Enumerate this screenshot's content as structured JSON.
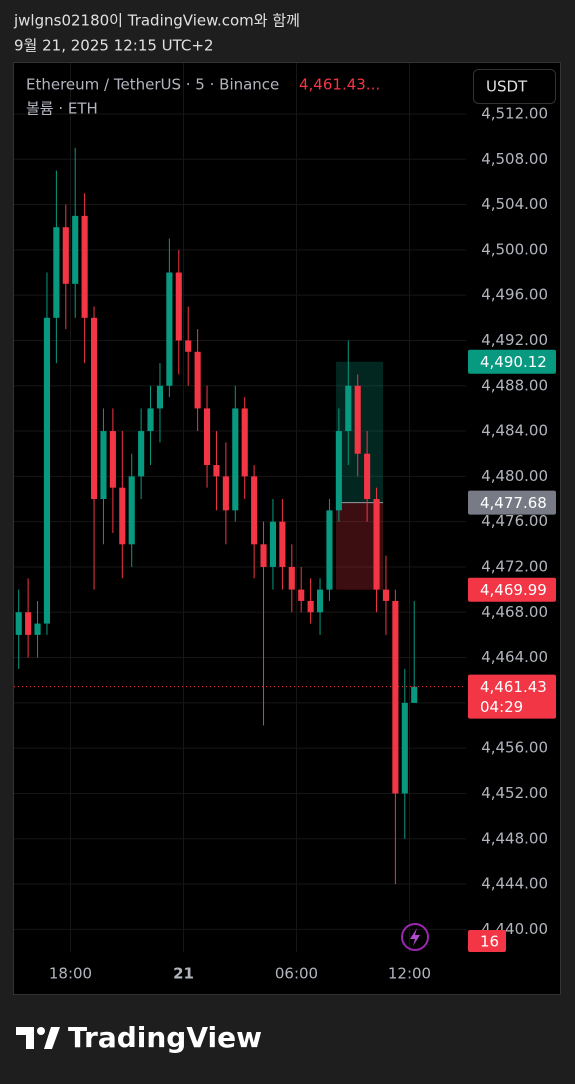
{
  "header": {
    "user": "jwlgns02180이 TradingView.com와 함께",
    "date": "9월 21, 2025 12:15 UTC+2"
  },
  "footer": {
    "logo": "TradingView"
  },
  "chart_data": {
    "type": "candlestick",
    "symbol": "Ethereum / TetherUS · 5 · Binance",
    "legend_price": {
      "value": 4461.43,
      "label": "4,461.43..."
    },
    "volume_legend": "볼륨 · ETH",
    "currency": "USDT",
    "up_color": "#089981",
    "down_color": "#f23645",
    "x": [
      15.25,
      15.75,
      16.25,
      16.75,
      17.25,
      17.75,
      18.25,
      18.75,
      19.25,
      19.75,
      20.25,
      20.75,
      21.25,
      21.75,
      22.25,
      22.75,
      23.25,
      23.75,
      24.25,
      24.75,
      25.25,
      25.75,
      26.25,
      26.75,
      27.25,
      27.75,
      28.25,
      28.75,
      29.25,
      29.75,
      30.25,
      30.75,
      31.25,
      31.75,
      32.25,
      32.75,
      33.25,
      33.75,
      34.25,
      34.75,
      35.25,
      35.75,
      36.25
    ],
    "open": [
      4466,
      4468,
      4466,
      4467,
      4494,
      4502,
      4497,
      4503,
      4494,
      4478,
      4484,
      4479,
      4474,
      4480,
      4484,
      4486,
      4488,
      4498,
      4492,
      4491,
      4486,
      4481,
      4480,
      4477,
      4486,
      4480,
      4474,
      4472,
      4476,
      4472,
      4470,
      4469,
      4468,
      4470,
      4477,
      4484,
      4488,
      4482,
      4478,
      4470,
      4469,
      4452,
      4460
    ],
    "high": [
      4470,
      4471,
      4469,
      4498,
      4507,
      4504,
      4509,
      4505,
      4495,
      4486,
      4486,
      4484,
      4482,
      4486,
      4488,
      4490,
      4501,
      4500,
      4495,
      4493,
      4488,
      4484,
      4483,
      4488,
      4487,
      4481,
      4476,
      4478,
      4478,
      4474,
      4472,
      4471,
      4471,
      4478,
      4486,
      4492,
      4489,
      4484,
      4479,
      4473,
      4470,
      4463,
      4469
    ],
    "low": [
      4463,
      4464,
      4464,
      4466,
      4490,
      4493,
      4494,
      4490,
      4470,
      4474,
      4475,
      4471,
      4472,
      4478,
      4481,
      4483,
      4487,
      4489,
      4488,
      4484,
      4479,
      4477,
      4474,
      4476,
      4478,
      4471,
      4458,
      4470,
      4470,
      4468,
      4468,
      4467,
      4466,
      4469,
      4476,
      4481,
      4480,
      4476,
      4468,
      4466,
      4444,
      4448,
      4460
    ],
    "close": [
      4468,
      4466,
      4467,
      4494,
      4502,
      4497,
      4503,
      4494,
      4478,
      4484,
      4479,
      4474,
      4480,
      4484,
      4486,
      4488,
      4498,
      4492,
      4491,
      4486,
      4481,
      4480,
      4477,
      4486,
      4480,
      4474,
      4472,
      4476,
      4472,
      4470,
      4469,
      4468,
      4470,
      4477,
      4484,
      4488,
      4482,
      4478,
      4470,
      4469,
      4452,
      4460,
      4461.43
    ],
    "xlim": [
      15,
      39
    ],
    "xticks": [
      {
        "value": 18,
        "label": "18:00"
      },
      {
        "value": 24,
        "label": "21"
      },
      {
        "value": 30,
        "label": "06:00"
      },
      {
        "value": 36,
        "label": "12:00"
      }
    ],
    "ylim": [
      4438,
      4516.5
    ],
    "yticks": [
      {
        "value": 4440,
        "label": "4,440.00"
      },
      {
        "value": 4444,
        "label": "4,444.00"
      },
      {
        "value": 4448,
        "label": "4,448.00"
      },
      {
        "value": 4452,
        "label": "4,452.00"
      },
      {
        "value": 4456,
        "label": "4,456.00"
      },
      {
        "value": 4460,
        "label": "4,460.00"
      },
      {
        "value": 4464,
        "label": "4,464.00"
      },
      {
        "value": 4468,
        "label": "4,468.00"
      },
      {
        "value": 4472,
        "label": "4,472.00"
      },
      {
        "value": 4476,
        "label": "4,476.00"
      },
      {
        "value": 4480,
        "label": "4,480.00"
      },
      {
        "value": 4484,
        "label": "4,484.00"
      },
      {
        "value": 4488,
        "label": "4,488.00"
      },
      {
        "value": 4492,
        "label": "4,492.00"
      },
      {
        "value": 4496,
        "label": "4,496.00"
      },
      {
        "value": 4500,
        "label": "4,500.00"
      },
      {
        "value": 4504,
        "label": "4,504.00"
      },
      {
        "value": 4508,
        "label": "4,508.00"
      },
      {
        "value": 4512,
        "label": "4,512.00"
      }
    ],
    "grid": true,
    "position_x": [
      32.1,
      34.6
    ],
    "markers": [
      {
        "value": 4490.12,
        "label": "4,490.12",
        "color": "#089981"
      },
      {
        "value": 4477.68,
        "label": "4,477.68",
        "color": "#787b86"
      },
      {
        "value": 4469.99,
        "label": "4,469.99",
        "color": "#f23645"
      }
    ],
    "last_price": {
      "value": 4461.43,
      "label": "4,461.43",
      "countdown": "04:29",
      "color": "#f23645"
    },
    "volume_badge": 16
  }
}
